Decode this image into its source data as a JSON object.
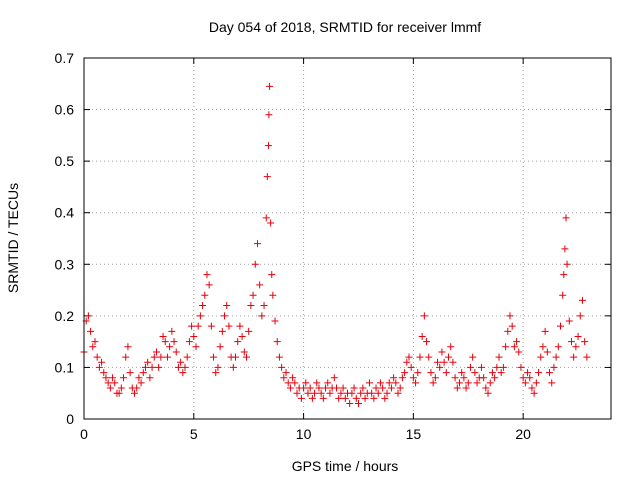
{
  "chart_data": {
    "type": "scatter",
    "title": "Day 054 of 2018, SRMTID for receiver lmmf",
    "xlabel": "GPS time / hours",
    "ylabel": "SRMTID / TECUs",
    "xlim": [
      0,
      24
    ],
    "ylim": [
      0,
      0.7
    ],
    "xticks": [
      0,
      5,
      10,
      15,
      20
    ],
    "yticks": [
      0,
      0.1,
      0.2,
      0.3,
      0.4,
      0.5,
      0.6,
      0.7
    ],
    "grid": true,
    "marker": "plus",
    "color": "#e8000b",
    "series": [
      {
        "name": "SRMTID",
        "points": [
          [
            0.0,
            0.13
          ],
          [
            0.1,
            0.19
          ],
          [
            0.2,
            0.2
          ],
          [
            0.3,
            0.17
          ],
          [
            0.4,
            0.14
          ],
          [
            0.5,
            0.15
          ],
          [
            0.6,
            0.12
          ],
          [
            0.7,
            0.1
          ],
          [
            0.8,
            0.11
          ],
          [
            0.9,
            0.09
          ],
          [
            1.0,
            0.08
          ],
          [
            1.1,
            0.07
          ],
          [
            1.2,
            0.06
          ],
          [
            1.3,
            0.08
          ],
          [
            1.4,
            0.07
          ],
          [
            1.5,
            0.05
          ],
          [
            1.6,
            0.05
          ],
          [
            1.7,
            0.06
          ],
          [
            1.8,
            0.08
          ],
          [
            1.9,
            0.12
          ],
          [
            2.0,
            0.14
          ],
          [
            2.1,
            0.09
          ],
          [
            2.2,
            0.06
          ],
          [
            2.3,
            0.05
          ],
          [
            2.4,
            0.06
          ],
          [
            2.5,
            0.08
          ],
          [
            2.6,
            0.07
          ],
          [
            2.7,
            0.09
          ],
          [
            2.8,
            0.1
          ],
          [
            2.9,
            0.11
          ],
          [
            3.0,
            0.08
          ],
          [
            3.1,
            0.1
          ],
          [
            3.2,
            0.12
          ],
          [
            3.3,
            0.13
          ],
          [
            3.4,
            0.1
          ],
          [
            3.5,
            0.12
          ],
          [
            3.6,
            0.16
          ],
          [
            3.7,
            0.15
          ],
          [
            3.8,
            0.12
          ],
          [
            3.9,
            0.14
          ],
          [
            4.0,
            0.17
          ],
          [
            4.1,
            0.15
          ],
          [
            4.2,
            0.13
          ],
          [
            4.3,
            0.1
          ],
          [
            4.4,
            0.11
          ],
          [
            4.5,
            0.09
          ],
          [
            4.6,
            0.1
          ],
          [
            4.7,
            0.12
          ],
          [
            4.8,
            0.15
          ],
          [
            4.9,
            0.18
          ],
          [
            5.0,
            0.16
          ],
          [
            5.1,
            0.14
          ],
          [
            5.2,
            0.18
          ],
          [
            5.3,
            0.2
          ],
          [
            5.4,
            0.22
          ],
          [
            5.5,
            0.24
          ],
          [
            5.6,
            0.28
          ],
          [
            5.7,
            0.26
          ],
          [
            5.8,
            0.18
          ],
          [
            5.9,
            0.12
          ],
          [
            6.0,
            0.09
          ],
          [
            6.1,
            0.1
          ],
          [
            6.2,
            0.14
          ],
          [
            6.3,
            0.17
          ],
          [
            6.4,
            0.2
          ],
          [
            6.5,
            0.22
          ],
          [
            6.6,
            0.18
          ],
          [
            6.7,
            0.12
          ],
          [
            6.8,
            0.1
          ],
          [
            6.9,
            0.12
          ],
          [
            7.0,
            0.15
          ],
          [
            7.1,
            0.18
          ],
          [
            7.2,
            0.16
          ],
          [
            7.3,
            0.13
          ],
          [
            7.4,
            0.12
          ],
          [
            7.5,
            0.17
          ],
          [
            7.6,
            0.22
          ],
          [
            7.7,
            0.24
          ],
          [
            7.8,
            0.3
          ],
          [
            7.9,
            0.34
          ],
          [
            8.0,
            0.26
          ],
          [
            8.1,
            0.2
          ],
          [
            8.2,
            0.22
          ],
          [
            8.3,
            0.39
          ],
          [
            8.35,
            0.47
          ],
          [
            8.4,
            0.53
          ],
          [
            8.42,
            0.59
          ],
          [
            8.45,
            0.645
          ],
          [
            8.5,
            0.38
          ],
          [
            8.55,
            0.28
          ],
          [
            8.6,
            0.24
          ],
          [
            8.7,
            0.19
          ],
          [
            8.8,
            0.15
          ],
          [
            8.9,
            0.12
          ],
          [
            9.0,
            0.1
          ],
          [
            9.1,
            0.08
          ],
          [
            9.2,
            0.09
          ],
          [
            9.3,
            0.07
          ],
          [
            9.4,
            0.06
          ],
          [
            9.5,
            0.08
          ],
          [
            9.6,
            0.07
          ],
          [
            9.7,
            0.05
          ],
          [
            9.8,
            0.06
          ],
          [
            9.9,
            0.04
          ],
          [
            10.0,
            0.06
          ],
          [
            10.1,
            0.07
          ],
          [
            10.2,
            0.05
          ],
          [
            10.3,
            0.06
          ],
          [
            10.4,
            0.04
          ],
          [
            10.5,
            0.05
          ],
          [
            10.6,
            0.07
          ],
          [
            10.7,
            0.06
          ],
          [
            10.8,
            0.05
          ],
          [
            10.9,
            0.04
          ],
          [
            11.0,
            0.06
          ],
          [
            11.1,
            0.07
          ],
          [
            11.2,
            0.05
          ],
          [
            11.3,
            0.06
          ],
          [
            11.4,
            0.08
          ],
          [
            11.5,
            0.06
          ],
          [
            11.6,
            0.04
          ],
          [
            11.7,
            0.05
          ],
          [
            11.8,
            0.06
          ],
          [
            11.9,
            0.04
          ],
          [
            12.0,
            0.05
          ],
          [
            12.1,
            0.03
          ],
          [
            12.2,
            0.05
          ],
          [
            12.3,
            0.06
          ],
          [
            12.4,
            0.04
          ],
          [
            12.5,
            0.03
          ],
          [
            12.6,
            0.05
          ],
          [
            12.7,
            0.06
          ],
          [
            12.8,
            0.04
          ],
          [
            12.9,
            0.05
          ],
          [
            13.0,
            0.07
          ],
          [
            13.1,
            0.05
          ],
          [
            13.2,
            0.04
          ],
          [
            13.3,
            0.06
          ],
          [
            13.4,
            0.05
          ],
          [
            13.5,
            0.07
          ],
          [
            13.6,
            0.06
          ],
          [
            13.7,
            0.04
          ],
          [
            13.8,
            0.05
          ],
          [
            13.9,
            0.07
          ],
          [
            14.0,
            0.06
          ],
          [
            14.1,
            0.08
          ],
          [
            14.2,
            0.07
          ],
          [
            14.3,
            0.05
          ],
          [
            14.4,
            0.06
          ],
          [
            14.5,
            0.08
          ],
          [
            14.6,
            0.09
          ],
          [
            14.7,
            0.11
          ],
          [
            14.8,
            0.12
          ],
          [
            14.9,
            0.1
          ],
          [
            15.0,
            0.08
          ],
          [
            15.1,
            0.07
          ],
          [
            15.2,
            0.09
          ],
          [
            15.3,
            0.12
          ],
          [
            15.4,
            0.16
          ],
          [
            15.5,
            0.2
          ],
          [
            15.6,
            0.15
          ],
          [
            15.7,
            0.12
          ],
          [
            15.8,
            0.09
          ],
          [
            15.9,
            0.07
          ],
          [
            16.0,
            0.08
          ],
          [
            16.1,
            0.11
          ],
          [
            16.2,
            0.1
          ],
          [
            16.3,
            0.13
          ],
          [
            16.4,
            0.11
          ],
          [
            16.5,
            0.09
          ],
          [
            16.6,
            0.12
          ],
          [
            16.7,
            0.14
          ],
          [
            16.8,
            0.11
          ],
          [
            16.9,
            0.08
          ],
          [
            17.0,
            0.06
          ],
          [
            17.1,
            0.07
          ],
          [
            17.2,
            0.09
          ],
          [
            17.3,
            0.08
          ],
          [
            17.4,
            0.06
          ],
          [
            17.5,
            0.07
          ],
          [
            17.6,
            0.1
          ],
          [
            17.7,
            0.12
          ],
          [
            17.8,
            0.09
          ],
          [
            17.9,
            0.07
          ],
          [
            18.0,
            0.08
          ],
          [
            18.1,
            0.1
          ],
          [
            18.2,
            0.08
          ],
          [
            18.3,
            0.06
          ],
          [
            18.4,
            0.05
          ],
          [
            18.5,
            0.07
          ],
          [
            18.6,
            0.09
          ],
          [
            18.7,
            0.08
          ],
          [
            18.8,
            0.1
          ],
          [
            18.9,
            0.12
          ],
          [
            19.0,
            0.09
          ],
          [
            19.1,
            0.1
          ],
          [
            19.2,
            0.14
          ],
          [
            19.3,
            0.17
          ],
          [
            19.4,
            0.2
          ],
          [
            19.5,
            0.18
          ],
          [
            19.6,
            0.14
          ],
          [
            19.7,
            0.15
          ],
          [
            19.8,
            0.13
          ],
          [
            19.9,
            0.1
          ],
          [
            20.0,
            0.08
          ],
          [
            20.1,
            0.07
          ],
          [
            20.2,
            0.09
          ],
          [
            20.3,
            0.08
          ],
          [
            20.4,
            0.06
          ],
          [
            20.5,
            0.05
          ],
          [
            20.6,
            0.07
          ],
          [
            20.7,
            0.09
          ],
          [
            20.8,
            0.12
          ],
          [
            20.9,
            0.14
          ],
          [
            21.0,
            0.17
          ],
          [
            21.1,
            0.13
          ],
          [
            21.2,
            0.09
          ],
          [
            21.3,
            0.07
          ],
          [
            21.4,
            0.1
          ],
          [
            21.5,
            0.12
          ],
          [
            21.6,
            0.14
          ],
          [
            21.7,
            0.18
          ],
          [
            21.8,
            0.24
          ],
          [
            21.85,
            0.28
          ],
          [
            21.9,
            0.33
          ],
          [
            21.95,
            0.39
          ],
          [
            22.0,
            0.3
          ],
          [
            22.1,
            0.19
          ],
          [
            22.2,
            0.15
          ],
          [
            22.3,
            0.12
          ],
          [
            22.4,
            0.14
          ],
          [
            22.5,
            0.16
          ],
          [
            22.6,
            0.2
          ],
          [
            22.7,
            0.23
          ],
          [
            22.8,
            0.15
          ],
          [
            22.9,
            0.12
          ]
        ]
      }
    ]
  }
}
